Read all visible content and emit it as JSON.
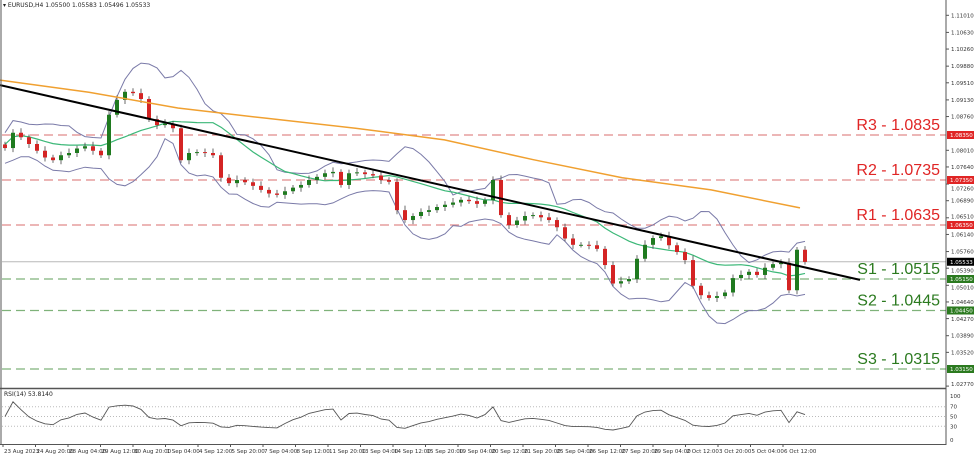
{
  "header": {
    "symbol": "EURUSD,H4",
    "ohlc": "1.05500 1.05583 1.05496 1.05533"
  },
  "rsi_header": "RSI(14) 53.8140",
  "chart_data": {
    "type": "candlestick",
    "symbol": "EURUSD",
    "timeframe": "H4",
    "closes": [
      1.0806,
      1.084,
      1.083,
      1.0815,
      1.08,
      1.0785,
      1.0779,
      1.079,
      1.0795,
      1.0805,
      1.081,
      1.08,
      1.079,
      1.088,
      1.0913,
      1.0931,
      1.0928,
      1.0915,
      1.087,
      1.0857,
      1.086,
      1.085,
      1.0779,
      1.0795,
      1.0797,
      1.0795,
      1.079,
      1.074,
      1.0728,
      1.0735,
      1.073,
      1.0722,
      1.0713,
      1.0705,
      1.0702,
      1.071,
      1.0718,
      1.0724,
      1.0735,
      1.0742,
      1.075,
      1.0753,
      1.0724,
      1.075,
      1.0752,
      1.0748,
      1.0745,
      1.0735,
      1.0731,
      1.0668,
      1.0646,
      1.0655,
      1.0664,
      1.0668,
      1.0675,
      1.068,
      1.0685,
      1.0691,
      1.0688,
      1.0682,
      1.069,
      1.0735,
      1.0657,
      1.0635,
      1.0645,
      1.0655,
      1.0657,
      1.0652,
      1.0646,
      1.063,
      1.0605,
      1.0591,
      1.0591,
      1.059,
      1.0582,
      1.0546,
      1.0505,
      1.051,
      1.0515,
      1.056,
      1.0591,
      1.0606,
      1.061,
      1.059,
      1.0575,
      1.0557,
      1.05,
      1.0479,
      1.0473,
      1.0477,
      1.0485,
      1.0517,
      1.0524,
      1.0531,
      1.0524,
      1.054,
      1.0548,
      1.0551,
      1.049,
      1.058,
      1.0553
    ],
    "ma_200": [
      1.0957,
      1.093,
      1.0895,
      1.0872,
      1.085,
      1.0824,
      1.078,
      1.074,
      1.0713,
      1.0673
    ],
    "trendline": {
      "start": 1.0946,
      "end": 1.0513
    },
    "x_tick_labels": [
      "23 Aug 2023",
      "24 Aug 20:00",
      "28 Aug 04:00",
      "29 Aug 12:00",
      "30 Aug 20:00",
      "1 Sep 04:00",
      "4 Sep 12:00",
      "5 Sep 20:00",
      "7 Sep 04:00",
      "8 Sep 12:00",
      "11 Sep 20:00",
      "13 Sep 04:00",
      "14 Sep 12:00",
      "15 Sep 20:00",
      "19 Sep 04:00",
      "20 Sep 12:00",
      "21 Sep 20:00",
      "25 Sep 04:00",
      "26 Sep 12:00",
      "27 Sep 20:00",
      "29 Sep 04:00",
      "2 Oct 12:00",
      "3 Oct 20:00",
      "5 Oct 04:00",
      "6 Oct 12:00"
    ],
    "y_tick_labels": [
      "1.11010",
      "1.10630",
      "1.10260",
      "1.09880",
      "1.09510",
      "1.09130",
      "1.08760",
      "1.08010",
      "1.07640",
      "1.07260",
      "1.06890",
      "1.06510",
      "1.06140",
      "1.05760",
      "1.05390",
      "1.05010",
      "1.04640",
      "1.04270",
      "1.03890",
      "1.03520",
      "1.02770"
    ],
    "ylim": [
      1.0262,
      1.1134
    ],
    "current_price": {
      "label": "1.05533",
      "value": 1.05533,
      "color": "#000000"
    },
    "levels": [
      {
        "name": "R3 - 1.0835",
        "value": 1.0835,
        "tag": "1.08350",
        "color": "#e02525",
        "line_color": "#e08a8a"
      },
      {
        "name": "R2 - 1.0735",
        "value": 1.0735,
        "tag": "1.07350",
        "color": "#e02525",
        "line_color": "#e08a8a"
      },
      {
        "name": "R1 - 1.0635",
        "value": 1.0635,
        "tag": "1.06350",
        "color": "#e02525",
        "line_color": "#e08a8a"
      },
      {
        "name": "S1 - 1.0515",
        "value": 1.0515,
        "tag": "1.05150",
        "color": "#2b7a1f",
        "line_color": "#7fb27a"
      },
      {
        "name": "S2 - 1.0445",
        "value": 1.0445,
        "tag": "1.04450",
        "color": "#2b7a1f",
        "line_color": "#7fb27a"
      },
      {
        "name": "S3 - 1.0315",
        "value": 1.0315,
        "tag": "1.03150",
        "color": "#2b7a1f",
        "line_color": "#7fb27a"
      }
    ],
    "rsi": {
      "period": 14,
      "value": 53.814,
      "y_tick_labels": [
        "100",
        "70",
        "50",
        "30",
        "0"
      ],
      "levels": [
        70,
        50,
        30
      ]
    },
    "colors": {
      "bull": "#1f7a1f",
      "bear": "#d42424",
      "ma200": "#f0a030",
      "ma_green": "#3cb878",
      "bands": "#7a7aa8",
      "trendline": "#000000"
    }
  }
}
